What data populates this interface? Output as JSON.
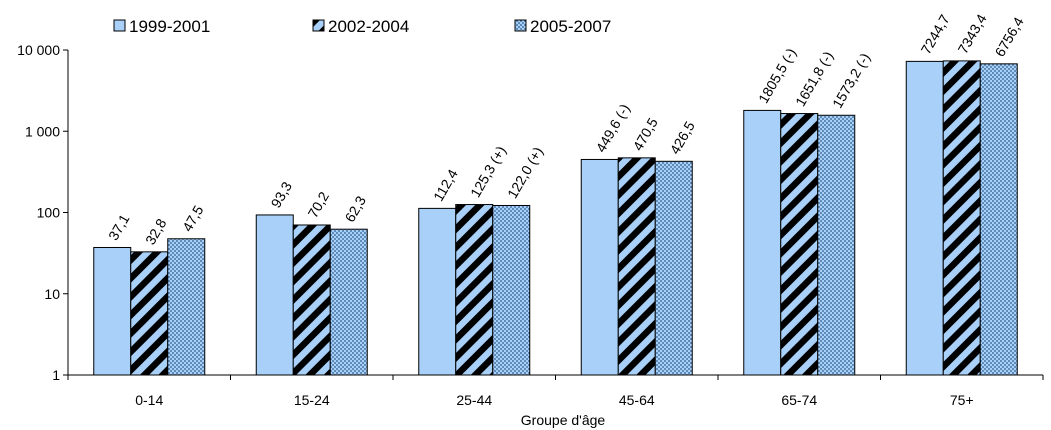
{
  "chart_data": {
    "type": "bar",
    "title": "",
    "xlabel": "Groupe d'âge",
    "ylabel": "",
    "yscale": "log",
    "ylim": [
      1,
      10000
    ],
    "yticks": [
      1,
      10,
      100,
      1000,
      10000
    ],
    "ytick_labels": [
      "1",
      "10",
      "100",
      "1 000",
      "10 000"
    ],
    "grid": false,
    "legend_position": "top",
    "categories": [
      "0-14",
      "15-24",
      "25-44",
      "45-64",
      "65-74",
      "75+"
    ],
    "series": [
      {
        "name": "1999-2001",
        "pattern": "solid",
        "color": "#a8d0f8",
        "values": [
          37.1,
          93.3,
          112.4,
          449.6,
          1805.5,
          7244.7
        ],
        "labels": [
          "37,1",
          "93,3",
          "112,4",
          "449,6 (-)",
          "1805,5 (-)",
          "7244,7"
        ]
      },
      {
        "name": "2002-2004",
        "pattern": "diagonal-stripes",
        "color": "#a8d0f8",
        "color2": "#000000",
        "values": [
          32.8,
          70.2,
          125.3,
          470.5,
          1651.8,
          7343.4
        ],
        "labels": [
          "32,8",
          "70,2",
          "125,3 (+)",
          "470,5",
          "1651,8 (-)",
          "7343,4"
        ]
      },
      {
        "name": "2005-2007",
        "pattern": "dots",
        "color": "#a8d0f8",
        "color2": "#2a5a8a",
        "values": [
          47.5,
          62.3,
          122.0,
          426.5,
          1573.2,
          6756.4
        ],
        "labels": [
          "47,5",
          "62,3",
          "122,0 (+)",
          "426,5",
          "1573,2 (-)",
          "6756,4"
        ]
      }
    ]
  }
}
